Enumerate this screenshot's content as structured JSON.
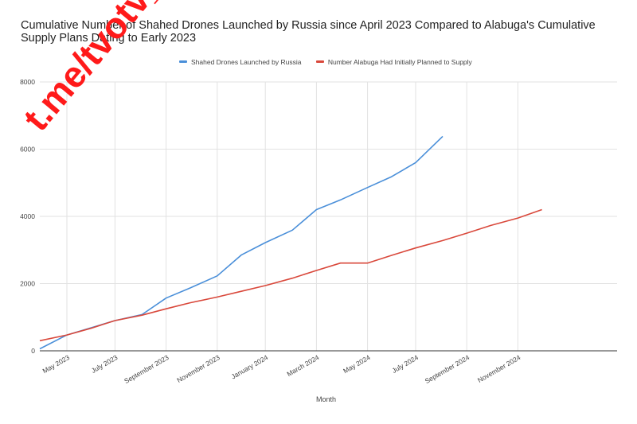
{
  "chart_data": {
    "type": "line",
    "title": "Cumulative Number of Shahed Drones Launched by Russia since April 2023 Compared to Alabuga's Cumulative Supply Plans Dating to Early 2023",
    "xlabel": "Month",
    "ylabel": "",
    "ylim": [
      0,
      8000
    ],
    "yticks": [
      "0",
      "2000",
      "4000",
      "6000",
      "8000"
    ],
    "xlim": [
      2023.33,
      2025.25
    ],
    "xticks": [
      {
        "label": "May 2023",
        "x": 2023.42
      },
      {
        "label": "July 2023",
        "x": 2023.58
      },
      {
        "label": "September 2023",
        "x": 2023.75
      },
      {
        "label": "November 2023",
        "x": 2023.92
      },
      {
        "label": "January 2024",
        "x": 2024.08
      },
      {
        "label": "March 2024",
        "x": 2024.25
      },
      {
        "label": "May 2024",
        "x": 2024.42
      },
      {
        "label": "July 2024",
        "x": 2024.58
      },
      {
        "label": "September 2024",
        "x": 2024.75
      },
      {
        "label": "November 2024",
        "x": 2024.92
      }
    ],
    "grid": true,
    "legend_position": "top",
    "series": [
      {
        "name": "Shahed Drones Launched by Russia",
        "color": "#4a8fd9",
        "points": [
          [
            2023.33,
            60
          ],
          [
            2023.42,
            470
          ],
          [
            2023.58,
            900
          ],
          [
            2023.67,
            1080
          ],
          [
            2023.75,
            1570
          ],
          [
            2023.83,
            1870
          ],
          [
            2023.92,
            2230
          ],
          [
            2024.0,
            2850
          ],
          [
            2024.08,
            3220
          ],
          [
            2024.17,
            3590
          ],
          [
            2024.25,
            4200
          ],
          [
            2024.33,
            4490
          ],
          [
            2024.42,
            4860
          ],
          [
            2024.5,
            5180
          ],
          [
            2024.58,
            5600
          ],
          [
            2024.67,
            6380
          ]
        ]
      },
      {
        "name": "Number Alabuga Had Initially Planned to Supply",
        "color": "#d9483b",
        "points": [
          [
            2023.33,
            300
          ],
          [
            2023.42,
            470
          ],
          [
            2023.5,
            670
          ],
          [
            2023.58,
            900
          ],
          [
            2023.67,
            1060
          ],
          [
            2023.75,
            1250
          ],
          [
            2023.83,
            1430
          ],
          [
            2023.92,
            1600
          ],
          [
            2024.0,
            1770
          ],
          [
            2024.08,
            1940
          ],
          [
            2024.17,
            2160
          ],
          [
            2024.25,
            2390
          ],
          [
            2024.33,
            2610
          ],
          [
            2024.42,
            2610
          ],
          [
            2024.5,
            2840
          ],
          [
            2024.58,
            3060
          ],
          [
            2024.67,
            3280
          ],
          [
            2024.75,
            3500
          ],
          [
            2024.83,
            3730
          ],
          [
            2024.92,
            3950
          ],
          [
            2025.0,
            4200
          ]
        ]
      }
    ]
  },
  "watermark": {
    "text": "t.me/tvotv_sk",
    "color": "#ff1a1a"
  }
}
